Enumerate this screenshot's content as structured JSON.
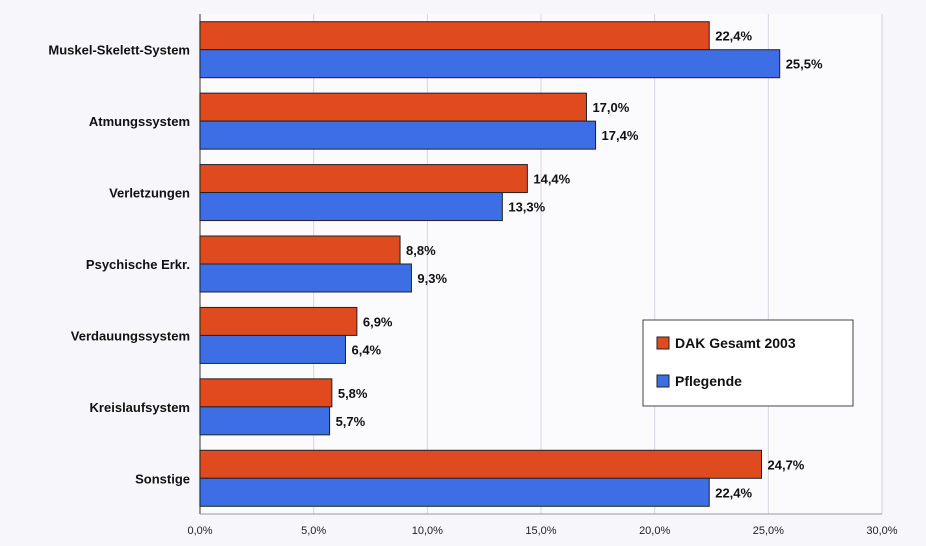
{
  "chart_data": {
    "type": "bar",
    "orientation": "horizontal",
    "categories": [
      "Muskel-Skelett-System",
      "Atmungssystem",
      "Verletzungen",
      "Psychische Erkr.",
      "Verdauungssystem",
      "Kreislaufsystem",
      "Sonstige"
    ],
    "series": [
      {
        "name": "DAK Gesamt 2003",
        "color": "#e04a1f",
        "values": [
          22.4,
          17.0,
          14.4,
          8.8,
          6.9,
          5.8,
          24.7
        ],
        "labels": [
          "22,4%",
          "17,0%",
          "14,4%",
          "8,8%",
          "6,9%",
          "5,8%",
          "24,7%"
        ]
      },
      {
        "name": "Pflegende",
        "color": "#3d6ee6",
        "values": [
          25.5,
          17.4,
          13.3,
          9.3,
          6.4,
          5.7,
          22.4
        ],
        "labels": [
          "25,5%",
          "17,4%",
          "13,3%",
          "9,3%",
          "6,4%",
          "5,7%",
          "22,4%"
        ]
      }
    ],
    "xlim": [
      0,
      30
    ],
    "xticks": [
      0,
      5,
      10,
      15,
      20,
      25,
      30
    ],
    "xtick_labels": [
      "0,0%",
      "5,0%",
      "10,0%",
      "15,0%",
      "20,0%",
      "25,0%",
      "30,0%"
    ],
    "grid": true,
    "legend_position": "right"
  }
}
